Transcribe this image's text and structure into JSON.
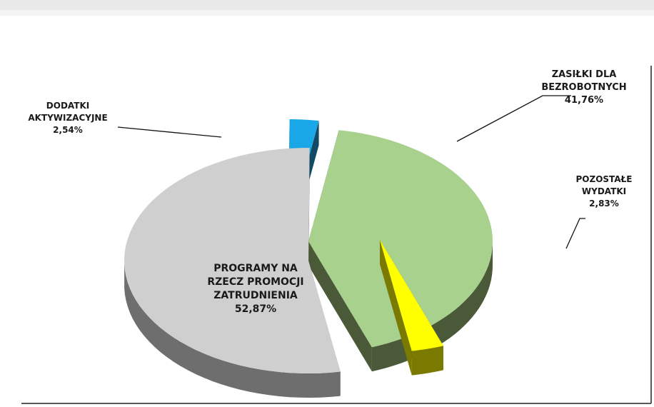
{
  "chart_data": {
    "type": "pie",
    "title": "",
    "slices": [
      {
        "name_lines": [
          "ZASIŁKI DLA",
          "BEZROBOTNYCH"
        ],
        "value": 41.76,
        "value_label": "41,76%",
        "color": "#a9d18e",
        "side_color": "#4a5a38"
      },
      {
        "name_lines": [
          "POZOSTAŁE",
          "WYDATKI"
        ],
        "value": 2.83,
        "value_label": "2,83%",
        "color": "#ffff00",
        "side_color": "#7a7a00"
      },
      {
        "name_lines": [
          "PROGRAMY NA",
          "RZECZ PROMOCJI",
          "ZATRUDNIENIA"
        ],
        "value": 52.87,
        "value_label": "52,87%",
        "color": "#cfcfcf",
        "side_color": "#6e6e6e"
      },
      {
        "name_lines": [
          "DODATKI",
          "AKTYWIZACYJNE"
        ],
        "value": 2.54,
        "value_label": "2,54%",
        "color": "#1aa7e8",
        "side_color": "#124a66"
      }
    ]
  }
}
